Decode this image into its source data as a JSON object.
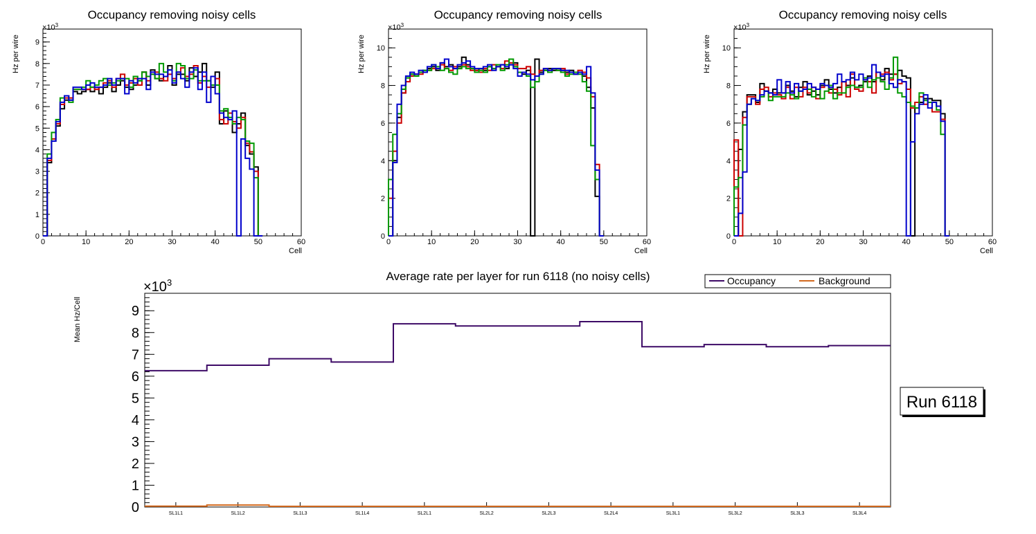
{
  "chart_data": {
    "top_panels": [
      {
        "type": "line",
        "style": "step-histogram",
        "title": "Occupancy removing noisy cells",
        "xlabel": "Cell",
        "ylabel": "Hz per wire",
        "exponent": "×10",
        "exponent_power": "3",
        "xlim": [
          0,
          60
        ],
        "ylim": [
          0,
          9.6
        ],
        "xticks": [
          "0",
          "10",
          "20",
          "30",
          "40",
          "50",
          "60"
        ],
        "yticks": [
          "0",
          "1",
          "2",
          "3",
          "4",
          "5",
          "6",
          "7",
          "8",
          "9"
        ],
        "series": [
          {
            "name": "layer1",
            "color": "#000000",
            "values": [
              0,
              3.4,
              4.4,
              5.1,
              5.9,
              6.3,
              6.3,
              6.7,
              6.6,
              6.7,
              6.8,
              6.7,
              6.9,
              6.6,
              6.9,
              7.1,
              6.7,
              7.0,
              7.2,
              6.9,
              6.8,
              7.0,
              7.2,
              7.6,
              7.0,
              7.7,
              7.3,
              7.2,
              7.4,
              7.9,
              7.0,
              7.5,
              7.5,
              7.2,
              7.8,
              7.4,
              7.6,
              8.0,
              7.2,
              6.9,
              7.6,
              5.2,
              5.8,
              5.7,
              4.8,
              5.2,
              5.7,
              4.2,
              3.8,
              3.2,
              0
            ]
          },
          {
            "name": "layer2",
            "color": "#cc0000",
            "values": [
              0,
              3.5,
              4.5,
              5.2,
              6.1,
              6.4,
              6.4,
              6.8,
              6.8,
              6.8,
              6.8,
              6.9,
              6.8,
              6.9,
              7.1,
              7.2,
              6.9,
              7.3,
              7.5,
              7.0,
              7.1,
              7.3,
              7.0,
              7.6,
              7.2,
              7.5,
              7.6,
              7.3,
              7.2,
              7.5,
              7.3,
              7.6,
              7.8,
              7.4,
              7.5,
              7.9,
              7.1,
              7.4,
              6.9,
              7.0,
              7.3,
              5.4,
              5.2,
              5.7,
              5.3,
              5.0,
              5.5,
              4.3,
              3.9,
              3.0,
              0
            ]
          },
          {
            "name": "layer3",
            "color": "#009900",
            "values": [
              0,
              3.8,
              4.8,
              5.4,
              6.4,
              6.5,
              6.2,
              6.8,
              6.8,
              6.9,
              7.2,
              6.9,
              7.0,
              7.2,
              7.3,
              7.0,
              7.1,
              7.2,
              7.3,
              7.3,
              6.9,
              7.4,
              7.2,
              7.6,
              7.4,
              7.5,
              7.3,
              8.0,
              7.6,
              7.7,
              7.2,
              8.0,
              7.9,
              7.3,
              7.3,
              7.7,
              7.2,
              7.2,
              7.2,
              7.0,
              7.0,
              5.8,
              5.9,
              5.5,
              5.2,
              5.5,
              5.4,
              4.4,
              4.3,
              2.7,
              0
            ]
          },
          {
            "name": "layer4",
            "color": "#0000cc",
            "values": [
              0,
              3.6,
              4.4,
              5.3,
              6.2,
              6.5,
              6.3,
              6.9,
              6.9,
              6.8,
              7.0,
              7.1,
              6.9,
              6.9,
              7.0,
              7.3,
              7.0,
              7.3,
              7.3,
              6.6,
              7.2,
              7.1,
              7.3,
              7.3,
              6.8,
              7.6,
              7.5,
              7.5,
              7.4,
              7.7,
              7.1,
              7.6,
              7.3,
              6.9,
              7.6,
              7.8,
              6.8,
              7.6,
              6.2,
              7.4,
              6.6,
              5.7,
              5.5,
              5.4,
              5.8,
              0,
              4.5,
              3.6,
              3.1,
              0,
              0
            ]
          }
        ]
      },
      {
        "type": "line",
        "style": "step-histogram",
        "title": "Occupancy removing noisy cells",
        "xlabel": "Cell",
        "ylabel": "Hz per wire",
        "exponent": "×10",
        "exponent_power": "3",
        "xlim": [
          0,
          60
        ],
        "ylim": [
          0,
          11
        ],
        "xticks": [
          "0",
          "10",
          "20",
          "30",
          "40",
          "50",
          "60"
        ],
        "yticks": [
          "0",
          "2",
          "4",
          "6",
          "8",
          "10"
        ],
        "series": [
          {
            "name": "layer1",
            "color": "#000000",
            "values": [
              0,
              4.0,
              6.3,
              7.6,
              8.4,
              8.6,
              8.6,
              8.7,
              8.8,
              8.9,
              9.0,
              8.8,
              9.2,
              9.0,
              9.1,
              8.9,
              9.0,
              9.5,
              9.1,
              8.9,
              8.8,
              8.9,
              8.8,
              9.0,
              8.9,
              9.0,
              9.1,
              8.9,
              9.1,
              9.2,
              8.7,
              8.6,
              8.8,
              0,
              9.4,
              8.7,
              8.8,
              8.9,
              8.8,
              8.9,
              8.8,
              8.7,
              8.8,
              8.6,
              8.7,
              8.5,
              7.9,
              6.8,
              2.1,
              0
            ]
          },
          {
            "name": "layer2",
            "color": "#cc0000",
            "values": [
              2.0,
              4.5,
              6.0,
              7.6,
              8.2,
              8.5,
              8.6,
              8.6,
              8.7,
              8.8,
              8.9,
              8.9,
              9.1,
              8.9,
              8.8,
              9.0,
              8.9,
              9.1,
              9.0,
              8.8,
              8.8,
              8.7,
              8.9,
              8.8,
              9.1,
              9.0,
              8.9,
              9.3,
              9.2,
              9.1,
              8.9,
              8.9,
              9.0,
              8.6,
              8.5,
              8.8,
              8.9,
              8.8,
              8.9,
              8.8,
              8.9,
              8.6,
              8.7,
              8.7,
              8.8,
              8.7,
              8.4,
              7.4,
              3.8,
              0
            ]
          },
          {
            "name": "layer3",
            "color": "#009900",
            "values": [
              3.0,
              5.4,
              6.5,
              7.8,
              8.4,
              8.6,
              8.5,
              8.7,
              8.8,
              8.8,
              9.1,
              9.0,
              8.8,
              8.9,
              8.7,
              8.6,
              8.9,
              9.0,
              8.9,
              8.9,
              8.7,
              8.8,
              8.7,
              9.0,
              8.9,
              9.1,
              8.8,
              9.1,
              9.4,
              9.0,
              8.7,
              8.7,
              8.5,
              7.9,
              8.2,
              8.6,
              8.8,
              8.7,
              8.9,
              8.8,
              8.7,
              8.5,
              8.6,
              8.7,
              8.6,
              8.2,
              7.7,
              4.8,
              3.0,
              0
            ]
          },
          {
            "name": "layer4",
            "color": "#0000cc",
            "values": [
              0,
              3.9,
              7.0,
              8.0,
              8.5,
              8.7,
              8.6,
              8.8,
              8.7,
              9.0,
              9.1,
              8.9,
              9.2,
              9.4,
              9.0,
              8.9,
              9.1,
              9.2,
              9.3,
              9.0,
              8.9,
              8.9,
              9.0,
              9.1,
              8.8,
              9.0,
              9.1,
              9.0,
              9.1,
              8.9,
              8.5,
              8.7,
              8.6,
              8.3,
              8.5,
              8.6,
              8.9,
              8.8,
              8.9,
              8.9,
              8.8,
              8.8,
              8.7,
              8.6,
              8.7,
              8.6,
              9.0,
              7.6,
              3.5,
              0
            ]
          }
        ]
      },
      {
        "type": "line",
        "style": "step-histogram",
        "title": "Occupancy removing noisy cells",
        "xlabel": "Cell",
        "ylabel": "Hz per wire",
        "exponent": "×10",
        "exponent_power": "3",
        "xlim": [
          0,
          60
        ],
        "ylim": [
          0,
          11
        ],
        "xticks": [
          "0",
          "10",
          "20",
          "30",
          "40",
          "50",
          "60"
        ],
        "yticks": [
          "0",
          "2",
          "4",
          "6",
          "8",
          "10"
        ],
        "series": [
          {
            "name": "layer1",
            "color": "#000000",
            "values": [
              0,
              4.6,
              6.6,
              7.5,
              7.5,
              7.1,
              8.1,
              7.7,
              7.6,
              7.8,
              7.6,
              7.6,
              8.0,
              7.7,
              7.4,
              7.9,
              8.2,
              7.5,
              7.7,
              7.5,
              8.0,
              8.3,
              7.8,
              7.6,
              7.9,
              8.2,
              8.0,
              8.4,
              7.9,
              8.0,
              8.2,
              8.5,
              8.2,
              8.7,
              8.3,
              8.9,
              8.6,
              8.6,
              8.8,
              8.5,
              8.4,
              0,
              6.8,
              7.1,
              7.3,
              7.3,
              7.2,
              7.2,
              6.5,
              0
            ]
          },
          {
            "name": "layer2",
            "color": "#cc0000",
            "values": [
              5.1,
              0,
              6.3,
              7.4,
              7.4,
              7.0,
              7.8,
              7.9,
              7.4,
              7.6,
              7.5,
              7.3,
              7.9,
              7.3,
              7.9,
              7.4,
              7.9,
              7.6,
              7.9,
              7.3,
              7.9,
              8.0,
              7.6,
              7.8,
              7.5,
              8.2,
              7.4,
              8.6,
              7.8,
              7.7,
              8.3,
              8.2,
              7.6,
              8.7,
              8.6,
              8.7,
              8.3,
              8.6,
              8.1,
              8.2,
              7.8,
              6.8,
              7.1,
              7.4,
              7.0,
              7.1,
              6.6,
              6.6,
              6.2,
              0
            ]
          },
          {
            "name": "layer3",
            "color": "#009900",
            "values": [
              2.6,
              3.1,
              5.9,
              7.0,
              7.3,
              7.2,
              7.4,
              7.7,
              7.2,
              7.4,
              7.4,
              7.4,
              7.6,
              7.5,
              7.3,
              7.7,
              7.8,
              7.8,
              7.4,
              7.8,
              7.3,
              7.7,
              8.0,
              7.3,
              7.6,
              7.6,
              7.9,
              8.0,
              7.9,
              7.9,
              8.4,
              7.9,
              8.3,
              8.4,
              8.2,
              7.8,
              8.4,
              9.5,
              7.6,
              7.4,
              7.1,
              6.9,
              6.8,
              7.6,
              7.2,
              7.1,
              7.1,
              6.7,
              5.4,
              0
            ]
          },
          {
            "name": "layer4",
            "color": "#0000cc",
            "values": [
              0,
              1.2,
              3.4,
              7.0,
              7.3,
              7.2,
              7.5,
              7.7,
              7.6,
              7.5,
              8.3,
              7.6,
              8.2,
              7.6,
              8.1,
              7.7,
              7.8,
              8.1,
              7.9,
              7.8,
              8.1,
              8.0,
              7.9,
              8.1,
              8.6,
              8.2,
              8.3,
              8.7,
              8.3,
              8.6,
              8.3,
              8.4,
              9.1,
              8.7,
              8.5,
              8.6,
              8.1,
              7.9,
              8.3,
              8.2,
              0,
              5.0,
              6.5,
              7.0,
              7.5,
              6.8,
              7.1,
              6.9,
              6.1,
              0
            ]
          }
        ]
      }
    ],
    "bottom_panel": {
      "type": "line",
      "style": "step",
      "title": "Average rate per layer for run 6118 (no noisy cells)",
      "ylabel": "Mean Hz/Cell",
      "exponent": "×10",
      "exponent_power": "3",
      "ylim": [
        0,
        9.8
      ],
      "yticks": [
        "0",
        "1",
        "2",
        "3",
        "4",
        "5",
        "6",
        "7",
        "8",
        "9"
      ],
      "categories": [
        "SL1L1",
        "SL1L2",
        "SL1L3",
        "SL1L4",
        "SL2L1",
        "SL2L2",
        "SL2L3",
        "SL2L4",
        "SL3L1",
        "SL3L2",
        "SL3L3",
        "SL3L4"
      ],
      "series": [
        {
          "name": "Occupancy",
          "color": "#3d0a66",
          "values": [
            6.25,
            6.5,
            6.8,
            6.65,
            8.4,
            8.3,
            8.3,
            8.5,
            7.35,
            7.45,
            7.35,
            7.4
          ]
        },
        {
          "name": "Background",
          "color": "#d2691e",
          "values": [
            0.04,
            0.09,
            0.03,
            0.03,
            0.03,
            0.03,
            0.03,
            0.03,
            0.03,
            0.03,
            0.03,
            0.03
          ]
        }
      ],
      "legend": [
        "Occupancy",
        "Background"
      ],
      "legend_position": "top-right"
    },
    "run_label": "Run 6118"
  }
}
